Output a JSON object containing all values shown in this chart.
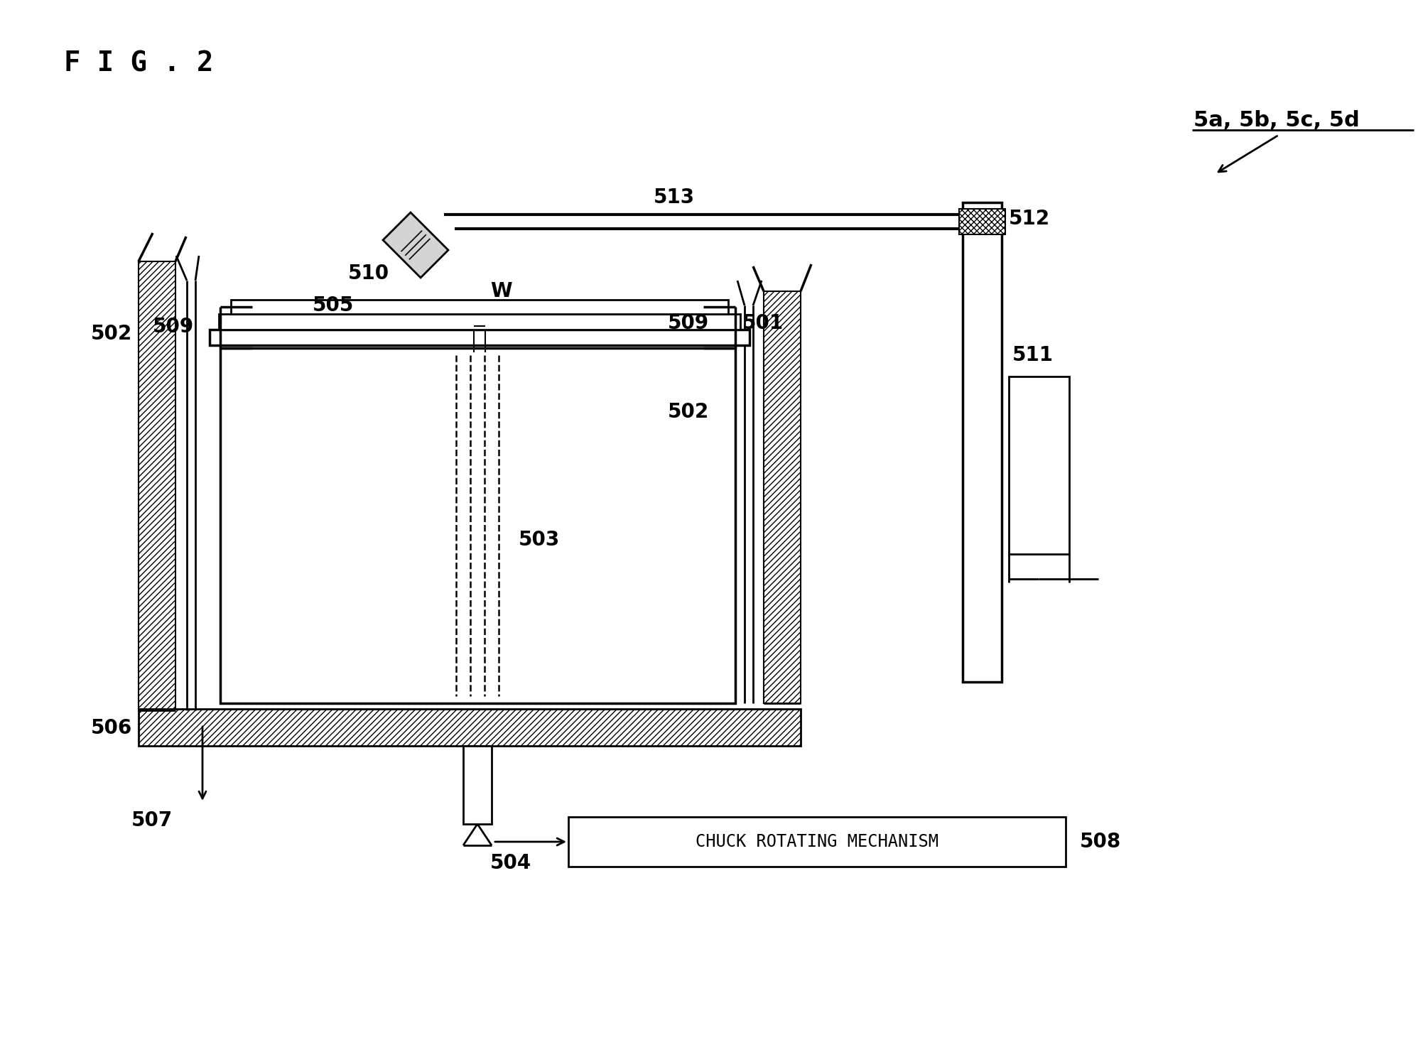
{
  "title": "F I G . 2",
  "bg_color": "#ffffff",
  "line_color": "#000000",
  "label_5abcd": "5a, 5b, 5c, 5d"
}
